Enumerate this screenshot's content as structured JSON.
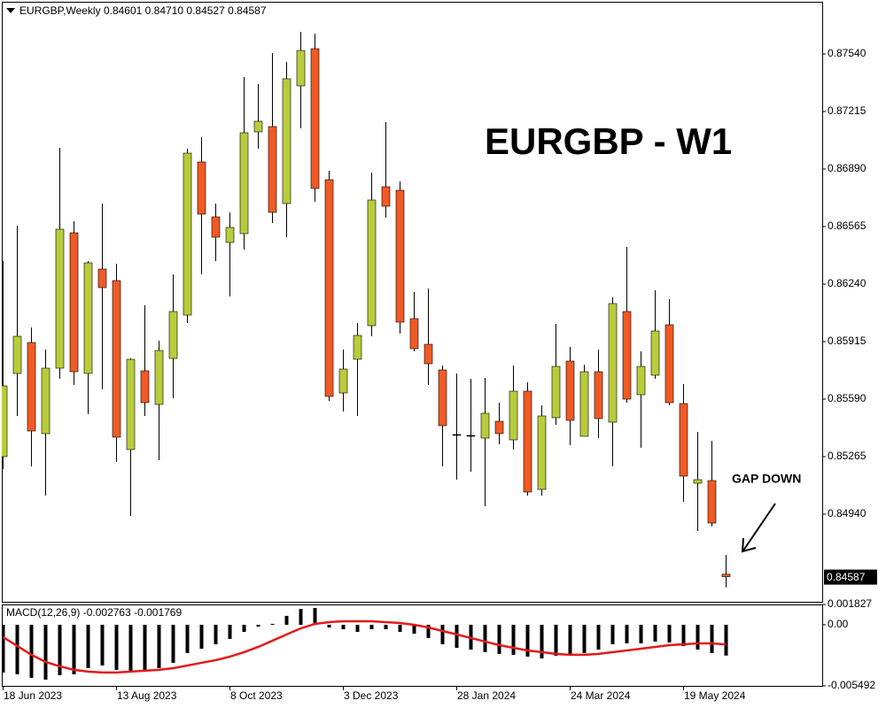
{
  "chart_data": [
    {
      "type": "candlestick",
      "title": "EURGBP,Weekly",
      "ohlc_labels": [
        "0.84601",
        "0.84710",
        "0.84527",
        "0.84587"
      ],
      "annotations": [
        "EURGBP - W1",
        "GAP DOWN"
      ],
      "categories": [
        "18 Jun 2023",
        null,
        null,
        null,
        null,
        null,
        null,
        null,
        "13 Aug 2023",
        null,
        null,
        null,
        null,
        null,
        null,
        null,
        "8 Oct 2023",
        null,
        null,
        null,
        null,
        null,
        null,
        null,
        "3 Dec 2023",
        null,
        null,
        null,
        null,
        null,
        null,
        null,
        "28 Jan 2024",
        null,
        null,
        null,
        null,
        null,
        null,
        null,
        "24 Mar 2024",
        null,
        null,
        null,
        null,
        null,
        null,
        null,
        "19 May 2024",
        null,
        null,
        null
      ],
      "open": [
        0.85265,
        0.85735,
        0.8591,
        0.85395,
        0.85765,
        0.8653,
        0.85735,
        0.86325,
        0.8626,
        0.85305,
        0.8575,
        0.8556,
        0.8582,
        0.86065,
        0.8693,
        0.8662,
        0.86475,
        0.86525,
        0.871,
        0.8713,
        0.86695,
        0.8736,
        0.8757,
        0.8683,
        0.85625,
        0.85815,
        0.86005,
        0.8679,
        0.8677,
        0.86045,
        0.859,
        0.85755,
        0.8539,
        0.85385,
        0.8537,
        0.85465,
        0.8536,
        0.85635,
        0.8508,
        0.85485,
        0.85805,
        0.8538,
        0.85745,
        0.8546,
        0.86085,
        0.85615,
        0.85725,
        0.8601,
        0.85565,
        0.85115,
        0.8513,
        0.84601
      ],
      "high": [
        0.8637,
        0.8657,
        0.85995,
        0.8587,
        0.8701,
        0.86595,
        0.8637,
        0.86695,
        0.86355,
        0.8582,
        0.8612,
        0.8592,
        0.86295,
        0.87005,
        0.8707,
        0.86695,
        0.86645,
        0.8741,
        0.8737,
        0.87545,
        0.87495,
        0.87665,
        0.87655,
        0.8688,
        0.8587,
        0.8602,
        0.8687,
        0.87155,
        0.8682,
        0.86195,
        0.86215,
        0.8578,
        0.85735,
        0.85705,
        0.8571,
        0.8557,
        0.8578,
        0.85685,
        0.85555,
        0.86015,
        0.85885,
        0.85785,
        0.8587,
        0.86165,
        0.8645,
        0.8586,
        0.86205,
        0.86155,
        0.85675,
        0.85405,
        0.85355,
        0.8471
      ],
      "low": [
        0.85195,
        0.85495,
        0.8521,
        0.85045,
        0.85705,
        0.8567,
        0.85505,
        0.85645,
        0.85235,
        0.8493,
        0.85495,
        0.85245,
        0.85595,
        0.8602,
        0.86295,
        0.8637,
        0.8617,
        0.86435,
        0.87005,
        0.86585,
        0.86505,
        0.8712,
        0.86705,
        0.8558,
        0.8552,
        0.85495,
        0.85945,
        0.86615,
        0.8596,
        0.8586,
        0.8567,
        0.8521,
        0.85135,
        0.8518,
        0.84985,
        0.85335,
        0.85305,
        0.85045,
        0.85045,
        0.85445,
        0.8533,
        0.8538,
        0.8537,
        0.8521,
        0.8557,
        0.85315,
        0.85705,
        0.85555,
        0.8501,
        0.84845,
        0.8487,
        0.84527
      ],
      "close": [
        0.85665,
        0.85945,
        0.8541,
        0.85765,
        0.8655,
        0.85745,
        0.8636,
        0.8622,
        0.85375,
        0.85815,
        0.8557,
        0.85865,
        0.86085,
        0.8698,
        0.86635,
        0.86505,
        0.8656,
        0.87095,
        0.8716,
        0.86645,
        0.874,
        0.8756,
        0.8678,
        0.85605,
        0.8576,
        0.8595,
        0.86715,
        0.8668,
        0.86025,
        0.85875,
        0.8579,
        0.8544,
        0.8539,
        0.85385,
        0.8551,
        0.85395,
        0.85635,
        0.85065,
        0.85495,
        0.85775,
        0.8547,
        0.85745,
        0.8548,
        0.8613,
        0.8559,
        0.85775,
        0.85975,
        0.8557,
        0.85155,
        0.85135,
        0.8489,
        0.84587
      ],
      "up_color": "#b8cc3c",
      "down_color": "#f15a24",
      "doji_color": "#000000",
      "ylim": [
        0.84445,
        0.87835
      ],
      "yticks": [
        {
          "value": 0.8754,
          "label": "0.87540"
        },
        0.87215,
        {
          "value": 0.8689,
          "label": "0.86890"
        },
        0.86565,
        {
          "value": 0.8624,
          "label": "0.86240"
        },
        0.85915,
        {
          "value": 0.8559,
          "label": "0.85590"
        },
        0.85265,
        {
          "value": 0.8494,
          "label": "0.84940"
        }
      ]
    },
    {
      "type": "macd",
      "title": "MACD(12,26,9)",
      "ylim": [
        -0.005492,
        0.001827
      ],
      "yticks": [
        0.001827,
        {
          "value": 0,
          "label": "0.00"
        },
        -0.005492
      ],
      "series": [
        {
          "style": "bar",
          "color": "#000000",
          "values": [
            -0.00429,
            -0.00445,
            -0.00477,
            -0.00493,
            -0.00453,
            -0.00445,
            -0.0039,
            -0.00366,
            -0.00405,
            -0.00429,
            -0.00413,
            -0.0039,
            -0.00342,
            -0.00254,
            -0.00215,
            -0.00175,
            -0.00127,
            -0.00064,
            -0.00016,
            8e-05,
            0.0008,
            0.00143,
            0.00151,
            -0.00024,
            -0.0004,
            -0.00064,
            -0.0004,
            -0.0004,
            -0.00064,
            -0.0008,
            -0.00119,
            -0.00175,
            -0.00207,
            -0.00223,
            -0.00246,
            -0.00262,
            -0.0027,
            -0.00286,
            -0.00302,
            -0.00278,
            -0.0027,
            -0.00254,
            -0.00223,
            -0.00175,
            -0.00167,
            -0.00167,
            -0.00151,
            -0.00159,
            -0.00191,
            -0.00223,
            -0.00254,
            -0.002763
          ]
        },
        {
          "style": "line",
          "color": "#e41a1a",
          "values": [
            -0.00111,
            -0.00191,
            -0.0027,
            -0.00334,
            -0.00374,
            -0.00405,
            -0.00421,
            -0.00429,
            -0.00429,
            -0.00421,
            -0.00413,
            -0.00405,
            -0.0039,
            -0.00366,
            -0.00342,
            -0.00318,
            -0.00286,
            -0.00246,
            -0.00199,
            -0.00143,
            -0.00087,
            -0.00032,
            8e-05,
            0.00024,
            0.00032,
            0.00032,
            0.00032,
            0.00024,
            0.00016,
            0,
            -0.00024,
            -0.00056,
            -0.00087,
            -0.00119,
            -0.00151,
            -0.00183,
            -0.00207,
            -0.00231,
            -0.00246,
            -0.00262,
            -0.0027,
            -0.0027,
            -0.00262,
            -0.00246,
            -0.00231,
            -0.00215,
            -0.00199,
            -0.00183,
            -0.00175,
            -0.00167,
            -0.00167,
            -0.001769
          ]
        }
      ]
    }
  ]
}
